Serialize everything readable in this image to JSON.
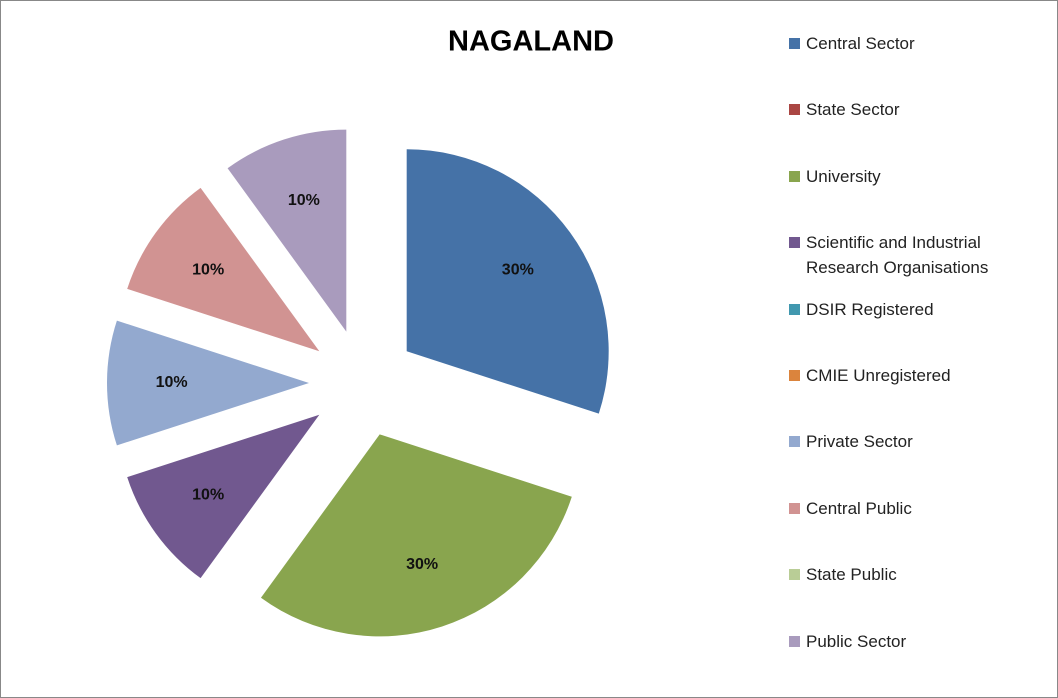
{
  "chart_data": {
    "type": "pie",
    "title": "NAGALAND",
    "categories": [
      "Central Sector",
      "State Sector",
      "University",
      "Scientific and Industrial Research Organisations",
      "DSIR Registered",
      "CMIE Unregistered",
      "Private Sector",
      "Central Public",
      "State Public",
      "Public Sector"
    ],
    "values": [
      30,
      0,
      30,
      10,
      0,
      0,
      10,
      10,
      0,
      10
    ],
    "value_labels": [
      "30%",
      null,
      "30%",
      "10%",
      null,
      null,
      "10%",
      "10%",
      null,
      "10%"
    ],
    "colors": [
      "#4572a7",
      "#aa4643",
      "#89a54e",
      "#71588f",
      "#4198af",
      "#db843d",
      "#93a9cf",
      "#d19392",
      "#b9cd96",
      "#a99bbd"
    ],
    "legend": "right"
  }
}
